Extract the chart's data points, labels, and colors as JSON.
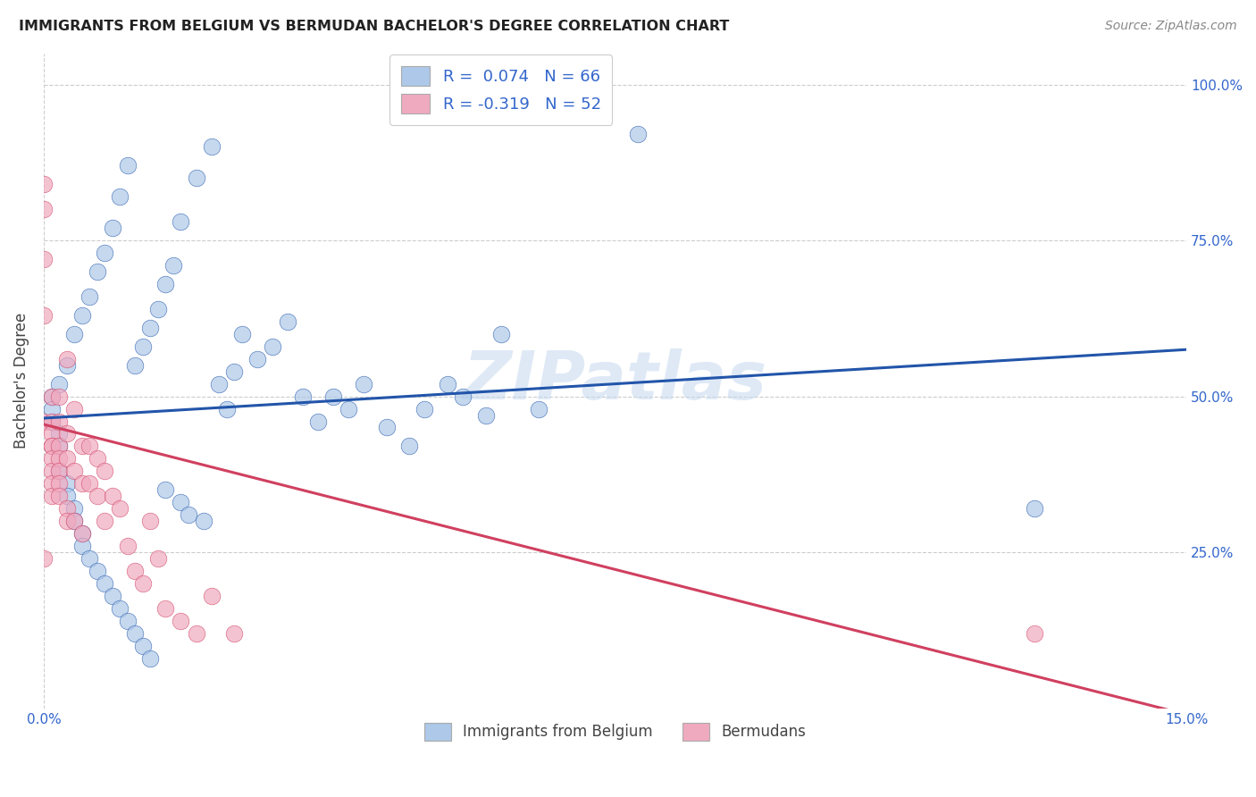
{
  "title": "IMMIGRANTS FROM BELGIUM VS BERMUDAN BACHELOR'S DEGREE CORRELATION CHART",
  "source": "Source: ZipAtlas.com",
  "ylabel": "Bachelor's Degree",
  "legend_label1": "Immigrants from Belgium",
  "legend_label2": "Bermudans",
  "blue_color": "#adc8e8",
  "pink_color": "#f0aac0",
  "blue_line_color": "#2255aa",
  "pink_line_color": "#d04060",
  "watermark": "ZIPatlas",
  "blue_scatter_x": [
    0.001,
    0.002,
    0.003,
    0.004,
    0.005,
    0.006,
    0.007,
    0.008,
    0.009,
    0.01,
    0.011,
    0.012,
    0.013,
    0.014,
    0.015,
    0.016,
    0.017,
    0.018,
    0.02,
    0.022,
    0.023,
    0.024,
    0.025,
    0.026,
    0.028,
    0.03,
    0.032,
    0.034,
    0.036,
    0.038,
    0.04,
    0.042,
    0.045,
    0.048,
    0.05,
    0.053,
    0.055,
    0.058,
    0.06,
    0.065,
    0.001,
    0.001,
    0.002,
    0.002,
    0.002,
    0.003,
    0.003,
    0.004,
    0.004,
    0.005,
    0.005,
    0.006,
    0.007,
    0.008,
    0.009,
    0.01,
    0.011,
    0.012,
    0.013,
    0.014,
    0.078,
    0.13,
    0.016,
    0.018,
    0.019,
    0.021
  ],
  "blue_scatter_y": [
    0.5,
    0.52,
    0.55,
    0.6,
    0.63,
    0.66,
    0.7,
    0.73,
    0.77,
    0.82,
    0.87,
    0.55,
    0.58,
    0.61,
    0.64,
    0.68,
    0.71,
    0.78,
    0.85,
    0.9,
    0.52,
    0.48,
    0.54,
    0.6,
    0.56,
    0.58,
    0.62,
    0.5,
    0.46,
    0.5,
    0.48,
    0.52,
    0.45,
    0.42,
    0.48,
    0.52,
    0.5,
    0.47,
    0.6,
    0.48,
    0.46,
    0.48,
    0.42,
    0.44,
    0.38,
    0.36,
    0.34,
    0.32,
    0.3,
    0.28,
    0.26,
    0.24,
    0.22,
    0.2,
    0.18,
    0.16,
    0.14,
    0.12,
    0.1,
    0.08,
    0.92,
    0.32,
    0.35,
    0.33,
    0.31,
    0.3
  ],
  "pink_scatter_x": [
    0.0,
    0.0,
    0.0,
    0.001,
    0.001,
    0.001,
    0.001,
    0.001,
    0.001,
    0.001,
    0.001,
    0.001,
    0.002,
    0.002,
    0.002,
    0.002,
    0.002,
    0.002,
    0.002,
    0.003,
    0.003,
    0.003,
    0.003,
    0.003,
    0.004,
    0.004,
    0.004,
    0.005,
    0.005,
    0.005,
    0.006,
    0.006,
    0.007,
    0.007,
    0.008,
    0.008,
    0.009,
    0.01,
    0.011,
    0.012,
    0.013,
    0.014,
    0.015,
    0.016,
    0.018,
    0.02,
    0.022,
    0.025,
    0.13,
    0.0,
    0.0,
    0.0
  ],
  "pink_scatter_y": [
    0.46,
    0.8,
    0.84,
    0.5,
    0.46,
    0.44,
    0.42,
    0.42,
    0.4,
    0.38,
    0.36,
    0.34,
    0.5,
    0.46,
    0.42,
    0.4,
    0.38,
    0.36,
    0.34,
    0.56,
    0.44,
    0.4,
    0.32,
    0.3,
    0.48,
    0.38,
    0.3,
    0.42,
    0.36,
    0.28,
    0.42,
    0.36,
    0.4,
    0.34,
    0.38,
    0.3,
    0.34,
    0.32,
    0.26,
    0.22,
    0.2,
    0.3,
    0.24,
    0.16,
    0.14,
    0.12,
    0.18,
    0.12,
    0.12,
    0.72,
    0.63,
    0.24
  ],
  "blue_line_x0": 0.0,
  "blue_line_x1": 0.15,
  "blue_line_y0": 0.465,
  "blue_line_y1": 0.575,
  "pink_line_x0": 0.0,
  "pink_line_x1": 0.15,
  "pink_line_y0": 0.455,
  "pink_line_y1": -0.01,
  "xlim": [
    0.0,
    0.15
  ],
  "ylim": [
    0.0,
    1.05
  ],
  "x_ticks": [
    0.0,
    0.025,
    0.05,
    0.075,
    0.1,
    0.125,
    0.15
  ],
  "x_tick_labels": [
    "0.0%",
    "",
    "",
    "",
    "",
    "",
    "15.0%"
  ],
  "y_ticks": [
    0.25,
    0.5,
    0.75,
    1.0
  ],
  "y_tick_labels": [
    "25.0%",
    "50.0%",
    "75.0%",
    "100.0%"
  ],
  "figsize": [
    14.06,
    8.92
  ],
  "dpi": 100
}
